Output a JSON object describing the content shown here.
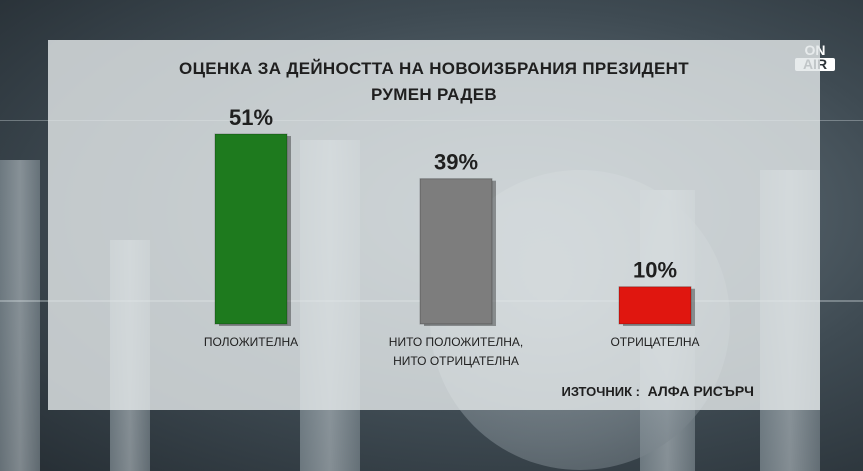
{
  "title_lines": [
    "ОЦЕНКА ЗА ДЕЙНОСТТА НА НОВОИЗБРАНИЯ ПРЕЗИДЕНТ",
    "РУМЕН РАДЕВ"
  ],
  "source": {
    "label": "ИЗТОЧНИК :",
    "name": "АЛФА РИСЪРЧ"
  },
  "logo": {
    "line1": "ON",
    "line2": "AIR"
  },
  "chart_data": {
    "type": "bar",
    "title": "ОЦЕНКА ЗА ДЕЙНОСТТА НА НОВОИЗБРАНИЯ ПРЕЗИДЕНТ РУМЕН РАДЕВ",
    "categories": [
      [
        "ПОЛОЖИТЕЛНА"
      ],
      [
        "НИТО ПОЛОЖИТЕЛНА,",
        "НИТО ОТРИЦАТЕЛНА"
      ],
      [
        "ОТРИЦАТЕЛНА"
      ]
    ],
    "values": [
      51,
      39,
      10
    ],
    "value_labels": [
      "51%",
      "39%",
      "10%"
    ],
    "colors": [
      "#1e7a1e",
      "#7d7d7d",
      "#e0160f"
    ],
    "ylim": [
      0,
      51
    ],
    "grid": false,
    "legend": "none",
    "xlabel": "",
    "ylabel": ""
  }
}
